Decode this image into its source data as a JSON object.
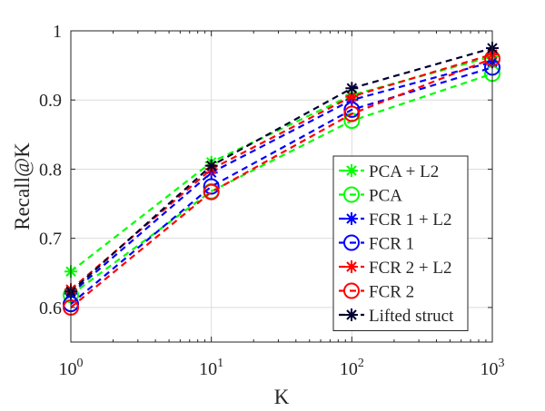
{
  "chart_data": {
    "type": "line",
    "title": "",
    "xlabel": "K",
    "ylabel": "Recall@K",
    "xscale": "log",
    "xlim": [
      1,
      1000
    ],
    "ylim": [
      0.55,
      1.0
    ],
    "x": [
      1,
      10,
      100,
      1000
    ],
    "xtick_labels": [
      {
        "base": "10",
        "exp": "0"
      },
      {
        "base": "10",
        "exp": "1"
      },
      {
        "base": "10",
        "exp": "2"
      },
      {
        "base": "10",
        "exp": "3"
      }
    ],
    "yticks": [
      0.6,
      0.7,
      0.8,
      0.9,
      1.0
    ],
    "ytick_labels": [
      "0.6",
      "0.7",
      "0.8",
      "0.9",
      "1"
    ],
    "grid": true,
    "legend_position": "bottom-right",
    "series": [
      {
        "name": "PCA + L2",
        "color": "#00ff00",
        "marker": "asterisk",
        "values": [
          0.652,
          0.81,
          0.907,
          0.963
        ]
      },
      {
        "name": "PCA",
        "color": "#00ff00",
        "marker": "circle",
        "values": [
          0.618,
          0.768,
          0.87,
          0.938
        ]
      },
      {
        "name": "FCR 1 + L2",
        "color": "#0000ff",
        "marker": "asterisk",
        "values": [
          0.62,
          0.795,
          0.9,
          0.955
        ]
      },
      {
        "name": "FCR 1",
        "color": "#0000ff",
        "marker": "circle",
        "values": [
          0.605,
          0.775,
          0.886,
          0.947
        ]
      },
      {
        "name": "FCR 2 + L2",
        "color": "#ff0000",
        "marker": "asterisk",
        "values": [
          0.626,
          0.8,
          0.905,
          0.966
        ]
      },
      {
        "name": "FCR 2",
        "color": "#ff0000",
        "marker": "circle",
        "values": [
          0.6,
          0.767,
          0.88,
          0.96
        ]
      },
      {
        "name": "Lifted struct",
        "color": "#000033",
        "marker": "asterisk",
        "values": [
          0.623,
          0.805,
          0.917,
          0.975
        ]
      }
    ]
  }
}
